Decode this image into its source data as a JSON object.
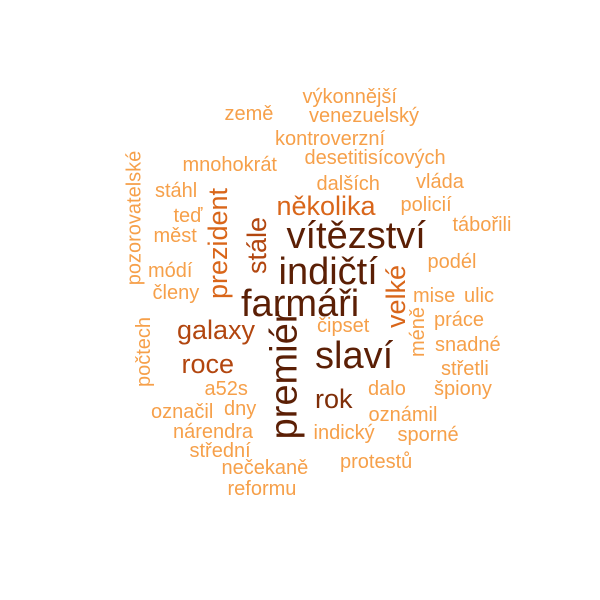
{
  "colors": {
    "level1": "#f6a04a",
    "level2": "#f08b2c",
    "level3": "#d9661a",
    "level4": "#b2460f",
    "level5": "#7f2e08",
    "level6": "#5b1f05"
  },
  "words": [
    {
      "text": "výkonnější",
      "level": 1
    },
    {
      "text": "země",
      "level": 1
    },
    {
      "text": "venezuelský",
      "level": 1
    },
    {
      "text": "kontroverzní",
      "level": 1
    },
    {
      "text": "mnohokrát",
      "level": 1
    },
    {
      "text": "desetitisícových",
      "level": 1
    },
    {
      "text": "pozorovatelské",
      "level": 1
    },
    {
      "text": "dalších",
      "level": 1
    },
    {
      "text": "vláda",
      "level": 1
    },
    {
      "text": "stáhl",
      "level": 1
    },
    {
      "text": "policií",
      "level": 1
    },
    {
      "text": "několika",
      "level": 3
    },
    {
      "text": "prezident",
      "level": 3
    },
    {
      "text": "teď",
      "level": 1
    },
    {
      "text": "tábořili",
      "level": 1
    },
    {
      "text": "měst",
      "level": 1
    },
    {
      "text": "vítězství",
      "level": 6
    },
    {
      "text": "stále",
      "level": 4
    },
    {
      "text": "podél",
      "level": 1
    },
    {
      "text": "indičtí",
      "level": 6
    },
    {
      "text": "módí",
      "level": 1
    },
    {
      "text": "velké",
      "level": 3
    },
    {
      "text": "členy",
      "level": 1
    },
    {
      "text": "farmáři",
      "level": 6
    },
    {
      "text": "mise",
      "level": 1
    },
    {
      "text": "ulic",
      "level": 1
    },
    {
      "text": "čipset",
      "level": 1
    },
    {
      "text": "méně",
      "level": 1
    },
    {
      "text": "práce",
      "level": 1
    },
    {
      "text": "počtech",
      "level": 1
    },
    {
      "text": "galaxy",
      "level": 4
    },
    {
      "text": "premiér",
      "level": 6
    },
    {
      "text": "slaví",
      "level": 6
    },
    {
      "text": "snadné",
      "level": 1
    },
    {
      "text": "roce",
      "level": 4
    },
    {
      "text": "střetli",
      "level": 1
    },
    {
      "text": "a52s",
      "level": 1
    },
    {
      "text": "dalo",
      "level": 1
    },
    {
      "text": "špiony",
      "level": 1
    },
    {
      "text": "rok",
      "level": 5
    },
    {
      "text": "označil",
      "level": 1
    },
    {
      "text": "dny",
      "level": 1
    },
    {
      "text": "oznámil",
      "level": 1
    },
    {
      "text": "nárendra",
      "level": 1
    },
    {
      "text": "indický",
      "level": 1
    },
    {
      "text": "sporné",
      "level": 1
    },
    {
      "text": "střední",
      "level": 1
    },
    {
      "text": "protestů",
      "level": 1
    },
    {
      "text": "nečekaně",
      "level": 1
    },
    {
      "text": "reformu",
      "level": 1
    }
  ]
}
